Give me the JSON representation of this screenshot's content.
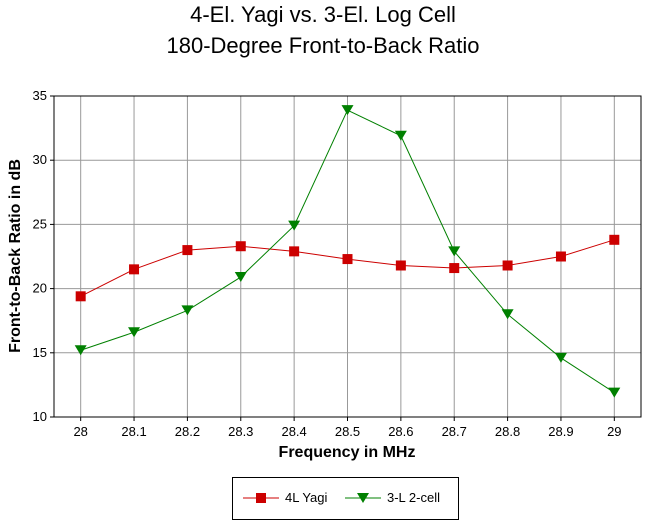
{
  "chart_data": {
    "type": "line",
    "title": "4-El. Yagi vs. 3-El. Log Cell",
    "subtitle": "180-Degree Front-to-Back Ratio",
    "xlabel": "Frequency in MHz",
    "ylabel": "Front-to-Back Ratio in dB",
    "x": [
      28,
      28.1,
      28.2,
      28.3,
      28.4,
      28.5,
      28.6,
      28.7,
      28.8,
      28.9,
      29
    ],
    "x_tick_labels": [
      "28",
      "28.1",
      "28.2",
      "28.3",
      "28.4",
      "28.5",
      "28.6",
      "28.7",
      "28.8",
      "28.9",
      "29"
    ],
    "ylim": [
      10,
      35
    ],
    "y_ticks": [
      10,
      15,
      20,
      25,
      30,
      35
    ],
    "grid": true,
    "legend_position": "bottom",
    "series": [
      {
        "name": "4L Yagi",
        "color": "#cc0000",
        "marker": "square",
        "values": [
          19.4,
          21.5,
          23.0,
          23.3,
          22.9,
          22.3,
          21.8,
          21.6,
          21.8,
          22.5,
          23.8
        ]
      },
      {
        "name": "3-L 2-cell",
        "color": "#008000",
        "marker": "triangle-down",
        "values": [
          15.2,
          16.6,
          18.3,
          20.9,
          24.9,
          33.9,
          31.9,
          22.9,
          18.0,
          14.6,
          11.9
        ]
      }
    ]
  }
}
